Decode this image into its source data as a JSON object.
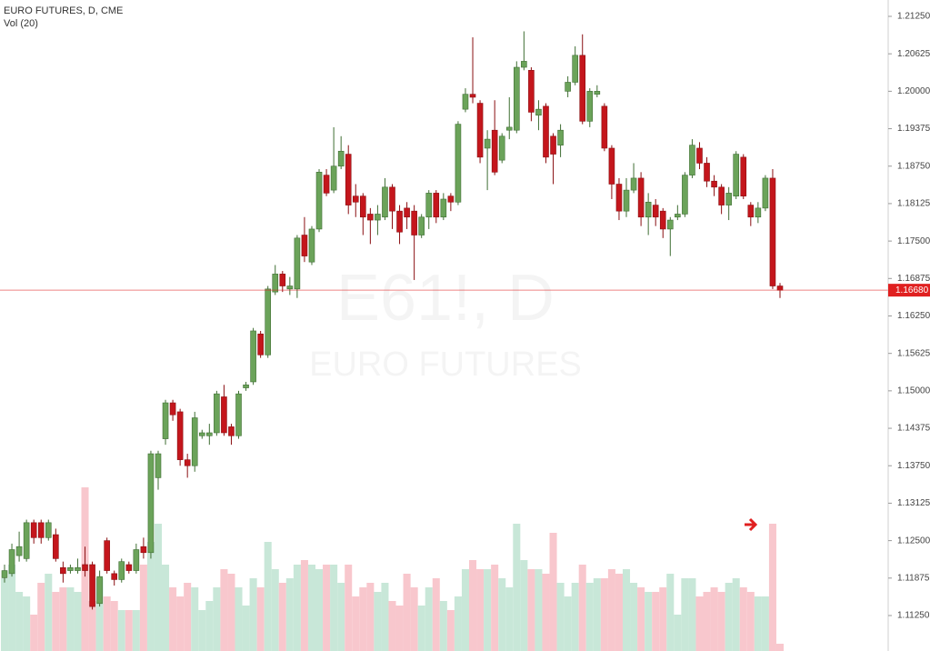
{
  "chart_data": {
    "type": "candlestick",
    "title": "EURO FUTURES, D, CME",
    "subtitle": "Vol (20)",
    "watermark_symbol": "E61!, D",
    "watermark_name": "EURO FUTURES",
    "open": [
      1.1188,
      1.1195,
      1.1225,
      1.122,
      1.128,
      1.128,
      1.1255,
      1.126,
      1.1205,
      1.12,
      1.12,
      1.121,
      1.121,
      1.1145,
      1.125,
      1.1195,
      1.1185,
      1.121,
      1.12,
      1.124,
      1.123,
      1.1355,
      1.142,
      1.148,
      1.1465,
      1.1385,
      1.1375,
      1.1425,
      1.1425,
      1.143,
      1.149,
      1.144,
      1.1425,
      1.1505,
      1.1515,
      1.1595,
      1.156,
      1.1665,
      1.1695,
      1.167,
      1.167,
      1.176,
      1.1715,
      1.177,
      1.186,
      1.1835,
      1.1875,
      1.1895,
      1.1825,
      1.1825,
      1.1795,
      1.1785,
      1.179,
      1.184,
      1.18,
      1.1805,
      1.18,
      1.176,
      1.179,
      1.183,
      1.179,
      1.1825,
      1.1815,
      1.197,
      1.1995,
      1.198,
      1.1905,
      1.1935,
      1.1885,
      1.1935,
      1.1935,
      1.204,
      1.2035,
      1.196,
      1.1975,
      1.1925,
      1.191,
      1.2,
      1.2015,
      1.206,
      1.195,
      1.1995,
      1.1975,
      1.1905,
      1.1845,
      1.18,
      1.1835,
      1.1855,
      1.179,
      1.181,
      1.18,
      1.177,
      1.179,
      1.1795,
      1.186,
      1.1905,
      1.188,
      1.185,
      1.184,
      1.181,
      1.1825,
      1.189,
      1.181,
      1.179,
      1.1805,
      1.1855,
      1.1675
    ],
    "high": [
      1.121,
      1.1245,
      1.1265,
      1.1285,
      1.1285,
      1.1285,
      1.1285,
      1.127,
      1.1215,
      1.121,
      1.122,
      1.124,
      1.1215,
      1.12,
      1.1255,
      1.12,
      1.122,
      1.1215,
      1.1245,
      1.1255,
      1.14,
      1.14,
      1.1485,
      1.1485,
      1.147,
      1.1395,
      1.1465,
      1.1435,
      1.1445,
      1.15,
      1.151,
      1.1445,
      1.15,
      1.1515,
      1.1605,
      1.16,
      1.1675,
      1.171,
      1.17,
      1.169,
      1.176,
      1.179,
      1.1775,
      1.187,
      1.187,
      1.194,
      1.1925,
      1.191,
      1.1845,
      1.183,
      1.1805,
      1.181,
      1.1855,
      1.1845,
      1.181,
      1.1815,
      1.181,
      1.1795,
      1.1835,
      1.1835,
      1.183,
      1.183,
      1.195,
      1.2005,
      1.209,
      1.1985,
      1.1935,
      1.1985,
      1.193,
      1.199,
      1.205,
      1.21,
      1.204,
      1.1985,
      1.198,
      1.193,
      1.1945,
      1.2025,
      1.2075,
      1.2095,
      1.2005,
      1.201,
      1.198,
      1.191,
      1.1855,
      1.1855,
      1.188,
      1.1865,
      1.183,
      1.182,
      1.1805,
      1.179,
      1.181,
      1.1865,
      1.192,
      1.1915,
      1.189,
      1.186,
      1.1845,
      1.184,
      1.19,
      1.1895,
      1.1815,
      1.1815,
      1.186,
      1.187,
      1.168
    ],
    "low": [
      1.118,
      1.119,
      1.1215,
      1.1215,
      1.1245,
      1.1245,
      1.125,
      1.1215,
      1.118,
      1.1195,
      1.1195,
      1.119,
      1.1135,
      1.114,
      1.1195,
      1.1175,
      1.118,
      1.1195,
      1.1195,
      1.122,
      1.122,
      1.1335,
      1.141,
      1.145,
      1.1375,
      1.1355,
      1.1365,
      1.142,
      1.141,
      1.1425,
      1.1425,
      1.141,
      1.142,
      1.15,
      1.151,
      1.1555,
      1.1555,
      1.166,
      1.1665,
      1.166,
      1.1655,
      1.1715,
      1.171,
      1.1765,
      1.1825,
      1.183,
      1.187,
      1.1795,
      1.179,
      1.176,
      1.1745,
      1.176,
      1.1785,
      1.177,
      1.1745,
      1.177,
      1.1685,
      1.1755,
      1.177,
      1.178,
      1.1785,
      1.18,
      1.181,
      1.1965,
      1.198,
      1.188,
      1.1835,
      1.186,
      1.188,
      1.192,
      1.193,
      1.2035,
      1.195,
      1.1935,
      1.188,
      1.1845,
      1.189,
      1.199,
      1.201,
      1.1945,
      1.194,
      1.199,
      1.19,
      1.182,
      1.1785,
      1.179,
      1.183,
      1.1775,
      1.176,
      1.1775,
      1.1755,
      1.1725,
      1.1785,
      1.179,
      1.1855,
      1.187,
      1.184,
      1.1825,
      1.1795,
      1.1785,
      1.182,
      1.182,
      1.1775,
      1.178,
      1.18,
      1.167,
      1.1655
    ],
    "close": [
      1.12,
      1.1235,
      1.124,
      1.128,
      1.1255,
      1.1255,
      1.128,
      1.122,
      1.1195,
      1.1205,
      1.1205,
      1.12,
      1.114,
      1.119,
      1.12,
      1.1185,
      1.1215,
      1.12,
      1.1235,
      1.123,
      1.1395,
      1.1395,
      1.148,
      1.146,
      1.1385,
      1.1375,
      1.1455,
      1.143,
      1.143,
      1.1495,
      1.143,
      1.1425,
      1.1495,
      1.151,
      1.16,
      1.156,
      1.167,
      1.1695,
      1.1675,
      1.1675,
      1.1755,
      1.1725,
      1.177,
      1.1865,
      1.183,
      1.1875,
      1.19,
      1.181,
      1.1815,
      1.179,
      1.1785,
      1.1795,
      1.184,
      1.18,
      1.1765,
      1.179,
      1.176,
      1.179,
      1.183,
      1.179,
      1.182,
      1.1815,
      1.1945,
      1.1995,
      1.199,
      1.189,
      1.192,
      1.1865,
      1.1925,
      1.194,
      1.204,
      1.205,
      1.1965,
      1.197,
      1.189,
      1.1895,
      1.1935,
      1.2015,
      1.206,
      1.195,
      1.2,
      1.2,
      1.1905,
      1.1845,
      1.18,
      1.1835,
      1.1855,
      1.179,
      1.1815,
      1.179,
      1.177,
      1.1785,
      1.1795,
      1.186,
      1.191,
      1.188,
      1.185,
      1.184,
      1.181,
      1.183,
      1.1895,
      1.1825,
      1.179,
      1.1805,
      1.1855,
      1.1675,
      1.1668
    ],
    "volume": [
      80,
      95,
      65,
      60,
      40,
      75,
      85,
      65,
      70,
      70,
      65,
      180,
      55,
      80,
      60,
      55,
      45,
      45,
      45,
      95,
      120,
      140,
      95,
      70,
      60,
      75,
      70,
      45,
      55,
      70,
      90,
      85,
      70,
      50,
      80,
      70,
      120,
      90,
      75,
      80,
      95,
      100,
      95,
      90,
      95,
      95,
      75,
      95,
      60,
      70,
      75,
      65,
      75,
      55,
      50,
      85,
      70,
      50,
      70,
      80,
      55,
      45,
      60,
      90,
      100,
      90,
      90,
      95,
      80,
      70,
      140,
      100,
      90,
      90,
      85,
      130,
      75,
      60,
      75,
      95,
      75,
      80,
      80,
      90,
      85,
      90,
      75,
      70,
      65,
      65,
      70,
      85,
      40,
      80,
      80,
      60,
      65,
      70,
      65,
      75,
      80,
      70,
      65,
      60,
      60,
      140,
      8
    ],
    "ylim": [
      1.10658,
      1.21523
    ],
    "yticks": [
      {
        "value": 1.2125,
        "label": "1.21250"
      },
      {
        "value": 1.20625,
        "label": "1.20625"
      },
      {
        "value": 1.2,
        "label": "1.20000"
      },
      {
        "value": 1.19375,
        "label": "1.19375"
      },
      {
        "value": 1.1875,
        "label": "1.18750"
      },
      {
        "value": 1.18125,
        "label": "1.18125"
      },
      {
        "value": 1.175,
        "label": "1.17500"
      },
      {
        "value": 1.16875,
        "label": "1.16875"
      },
      {
        "value": 1.1625,
        "label": "1.16250"
      },
      {
        "value": 1.15625,
        "label": "1.15625"
      },
      {
        "value": 1.15,
        "label": "1.15000"
      },
      {
        "value": 1.14375,
        "label": "1.14375"
      },
      {
        "value": 1.1375,
        "label": "1.13750"
      },
      {
        "value": 1.13125,
        "label": "1.13125"
      },
      {
        "value": 1.125,
        "label": "1.12500"
      },
      {
        "value": 1.11875,
        "label": "1.11875"
      },
      {
        "value": 1.1125,
        "label": "1.11250"
      }
    ],
    "volume_ylim": [
      0,
      400
    ],
    "last_price": {
      "value": 1.1668,
      "label": "1.16680"
    },
    "up_color": "#6ba35a",
    "up_border": "#3f6e33",
    "down_color": "#c4161c",
    "down_border": "#8a0f12",
    "volume_up_color": "#c8e7d8",
    "volume_down_color": "#f8c7cd",
    "last_price_color": "#e02020"
  }
}
